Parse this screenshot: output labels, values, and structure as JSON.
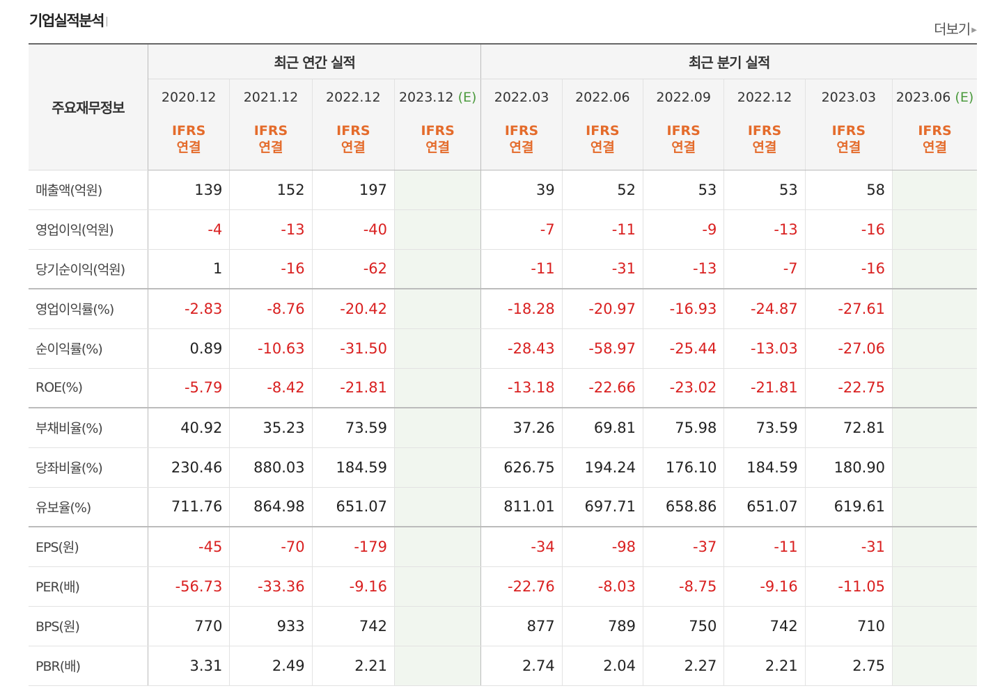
{
  "header": {
    "title": "기업실적분석",
    "more_label": "더보기"
  },
  "table": {
    "row_header_label": "주요재무정보",
    "group_annual": "최근 연간 실적",
    "group_quarter": "최근 분기 실적",
    "estimate_mark": "(E)",
    "ifrs_line1": "IFRS",
    "ifrs_line2": "연결",
    "periods": [
      "2020.12",
      "2021.12",
      "2022.12",
      "2023.12",
      "2022.03",
      "2022.06",
      "2022.09",
      "2022.12",
      "2023.03",
      "2023.06"
    ],
    "estimate_columns": [
      3,
      9
    ],
    "group_boundaries_after_rows": [
      2,
      5,
      8
    ],
    "rows": [
      {
        "label": "매출액(억원)",
        "values": [
          "139",
          "152",
          "197",
          "",
          "39",
          "52",
          "53",
          "53",
          "58",
          ""
        ]
      },
      {
        "label": "영업이익(억원)",
        "values": [
          "-4",
          "-13",
          "-40",
          "",
          "-7",
          "-11",
          "-9",
          "-13",
          "-16",
          ""
        ]
      },
      {
        "label": "당기순이익(억원)",
        "values": [
          "1",
          "-16",
          "-62",
          "",
          "-11",
          "-31",
          "-13",
          "-7",
          "-16",
          ""
        ]
      },
      {
        "label": "영업이익률(%)",
        "values": [
          "-2.83",
          "-8.76",
          "-20.42",
          "",
          "-18.28",
          "-20.97",
          "-16.93",
          "-24.87",
          "-27.61",
          ""
        ]
      },
      {
        "label": "순이익률(%)",
        "values": [
          "0.89",
          "-10.63",
          "-31.50",
          "",
          "-28.43",
          "-58.97",
          "-25.44",
          "-13.03",
          "-27.06",
          ""
        ]
      },
      {
        "label": "ROE(%)",
        "values": [
          "-5.79",
          "-8.42",
          "-21.81",
          "",
          "-13.18",
          "-22.66",
          "-23.02",
          "-21.81",
          "-22.75",
          ""
        ]
      },
      {
        "label": "부채비율(%)",
        "values": [
          "40.92",
          "35.23",
          "73.59",
          "",
          "37.26",
          "69.81",
          "75.98",
          "73.59",
          "72.81",
          ""
        ]
      },
      {
        "label": "당좌비율(%)",
        "values": [
          "230.46",
          "880.03",
          "184.59",
          "",
          "626.75",
          "194.24",
          "176.10",
          "184.59",
          "180.90",
          ""
        ]
      },
      {
        "label": "유보율(%)",
        "values": [
          "711.76",
          "864.98",
          "651.07",
          "",
          "811.01",
          "697.71",
          "658.86",
          "651.07",
          "619.61",
          ""
        ]
      },
      {
        "label": "EPS(원)",
        "values": [
          "-45",
          "-70",
          "-179",
          "",
          "-34",
          "-98",
          "-37",
          "-11",
          "-31",
          ""
        ]
      },
      {
        "label": "PER(배)",
        "values": [
          "-56.73",
          "-33.36",
          "-9.16",
          "",
          "-22.76",
          "-8.03",
          "-8.75",
          "-9.16",
          "-11.05",
          ""
        ]
      },
      {
        "label": "BPS(원)",
        "values": [
          "770",
          "933",
          "742",
          "",
          "877",
          "789",
          "750",
          "742",
          "710",
          ""
        ]
      },
      {
        "label": "PBR(배)",
        "values": [
          "3.31",
          "2.49",
          "2.21",
          "",
          "2.74",
          "2.04",
          "2.27",
          "2.21",
          "2.75",
          ""
        ]
      }
    ]
  },
  "colors": {
    "negative": "#d92020",
    "ifrs": "#e46b2b",
    "estimate_bg": "#f1f6ef",
    "estimate_mark": "#4b9a3d"
  }
}
